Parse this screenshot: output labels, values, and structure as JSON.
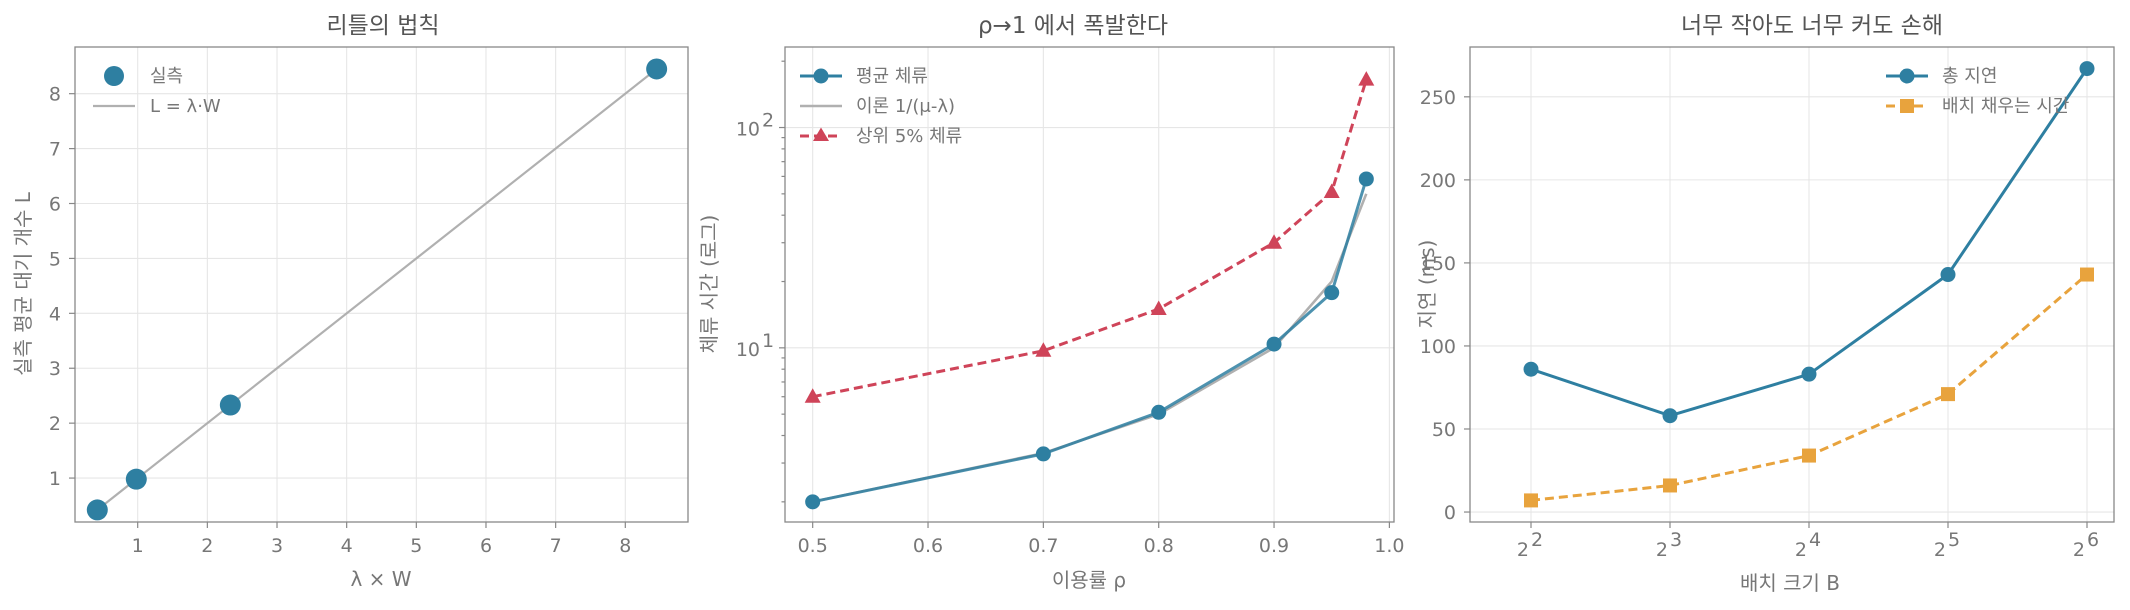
{
  "colors": {
    "blue": "#2e7fa1",
    "gray": "#b0b0b0",
    "red": "#cf4459",
    "orange": "#e8a33d"
  },
  "chart_data": [
    {
      "type": "scatter",
      "title": "리틀의 법칙",
      "xlabel": "λ × W",
      "ylabel": "실측 평균 대기 개수 L",
      "xlim": [
        0.1,
        8.9
      ],
      "ylim": [
        0.2,
        8.85
      ],
      "xticks": [
        "1",
        "2",
        "3",
        "4",
        "5",
        "6",
        "7",
        "8"
      ],
      "yticks": [
        "1",
        "2",
        "3",
        "4",
        "5",
        "6",
        "7",
        "8"
      ],
      "grid": true,
      "legend_position": "top-left",
      "series": [
        {
          "name": "실측",
          "kind": "scatter",
          "color": "blue",
          "points": [
            [
              0.42,
              0.42
            ],
            [
              0.98,
              0.98
            ],
            [
              2.33,
              2.33
            ],
            [
              8.45,
              8.45
            ]
          ]
        },
        {
          "name": "L = λ·W",
          "kind": "line",
          "color": "gray",
          "points": [
            [
              0.42,
              0.42
            ],
            [
              8.45,
              8.45
            ]
          ]
        }
      ]
    },
    {
      "type": "line",
      "title": "ρ→1 에서 폭발한다",
      "xlabel": "이용률 ρ",
      "ylabel": "체류 시간 (로그)",
      "xlim": [
        0.476,
        1.004
      ],
      "ylim": [
        1.62,
        232
      ],
      "yscale": "log",
      "xticks": [
        "0.5",
        "0.6",
        "0.7",
        "0.8",
        "0.9",
        "1.0"
      ],
      "yticks": [
        "10",
        "10"
      ],
      "ytick_exponents": [
        "1",
        "2"
      ],
      "grid": true,
      "legend_position": "top-left",
      "series": [
        {
          "name": "평균 체류",
          "color": "blue",
          "dash": "solid",
          "marker": "circle",
          "x": [
            0.5,
            0.7,
            0.8,
            0.9,
            0.95,
            0.98
          ],
          "y": [
            2.0,
            3.3,
            5.1,
            10.4,
            17.8,
            58.4
          ]
        },
        {
          "name": "이론 1/(μ-λ)",
          "color": "gray",
          "dash": "solid",
          "marker": "none",
          "x": [
            0.5,
            0.7,
            0.8,
            0.9,
            0.95,
            0.98
          ],
          "y": [
            2.0,
            3.33,
            5.0,
            10.0,
            20.0,
            50.0
          ]
        },
        {
          "name": "상위 5% 체류",
          "color": "red",
          "dash": "dashed",
          "marker": "triangle",
          "x": [
            0.5,
            0.7,
            0.8,
            0.9,
            0.95,
            0.98
          ],
          "y": [
            6.0,
            9.7,
            15.0,
            30.0,
            51.0,
            165.0
          ]
        }
      ]
    },
    {
      "type": "line",
      "title": "너무 작아도 너무 커도 손해",
      "xlabel": "배치 크기 B",
      "ylabel": "지연 (ms)",
      "categories": [
        "2",
        "2",
        "2",
        "2",
        "2"
      ],
      "category_exponents": [
        "2",
        "3",
        "4",
        "5",
        "6"
      ],
      "ylim": [
        -6,
        280
      ],
      "yticks": [
        "0",
        "50",
        "100",
        "150",
        "200",
        "250"
      ],
      "grid": true,
      "legend_position": "top-right",
      "series": [
        {
          "name": "총 지연",
          "color": "blue",
          "dash": "solid",
          "marker": "circle",
          "values": [
            86,
            58,
            83,
            143,
            267
          ]
        },
        {
          "name": "배치 채우는 시간",
          "color": "orange",
          "dash": "dashed",
          "marker": "square",
          "values": [
            7,
            16,
            34,
            71,
            143
          ]
        }
      ]
    }
  ]
}
